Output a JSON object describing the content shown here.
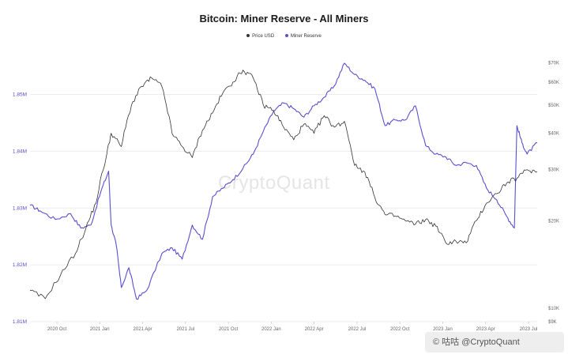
{
  "chart_data": {
    "type": "line",
    "title": "Bitcoin: Miner Reserve - All Miners",
    "legend": [
      {
        "name": "Price USD",
        "color": "#333333"
      },
      {
        "name": "Miner Reserve",
        "color": "#5a4fcf"
      }
    ],
    "x_ticks": [
      "2020 Oct",
      "2021 Jan",
      "2021 Apr",
      "2021 Jul",
      "2021 Oct",
      "2022 Jan",
      "2022 Apr",
      "2022 Jul",
      "2022 Oct",
      "2023 Jan",
      "2023 Apr",
      "2023 Jul"
    ],
    "y_left_ticks": [
      "1.85M",
      "1.84M",
      "1.83M",
      "1.82M",
      "1.81M"
    ],
    "y_left_values": [
      1850000,
      1840000,
      1830000,
      1820000,
      1810000
    ],
    "y_left_range": [
      1810000,
      1858000
    ],
    "y_right_ticks": [
      "$70K",
      "$60K",
      "$50K",
      "$40K",
      "$30K",
      "$20K",
      "$10K",
      "$9K"
    ],
    "y_right_values": [
      70000,
      60000,
      50000,
      40000,
      30000,
      20000,
      10000,
      9000
    ],
    "y_right_scale": "log",
    "series": [
      {
        "name": "Miner Reserve",
        "axis": "left",
        "color": "#5a4fcf",
        "x": [
          0,
          0.02,
          0.05,
          0.08,
          0.1,
          0.12,
          0.14,
          0.155,
          0.16,
          0.17,
          0.18,
          0.195,
          0.21,
          0.23,
          0.26,
          0.28,
          0.3,
          0.32,
          0.34,
          0.36,
          0.38,
          0.4,
          0.42,
          0.44,
          0.46,
          0.48,
          0.5,
          0.52,
          0.54,
          0.56,
          0.58,
          0.6,
          0.62,
          0.64,
          0.66,
          0.68,
          0.7,
          0.72,
          0.74,
          0.76,
          0.78,
          0.8,
          0.82,
          0.84,
          0.86,
          0.88,
          0.9,
          0.92,
          0.94,
          0.955,
          0.96,
          0.97,
          0.98,
          1.0
        ],
        "values": [
          1830500,
          1829500,
          1828000,
          1829000,
          1826500,
          1827000,
          1833000,
          1836500,
          1827000,
          1823500,
          1816000,
          1819500,
          1814000,
          1815500,
          1822000,
          1823000,
          1821000,
          1827000,
          1824500,
          1832000,
          1833500,
          1835000,
          1837000,
          1839500,
          1843500,
          1847000,
          1848500,
          1847500,
          1846000,
          1848000,
          1849500,
          1851500,
          1855500,
          1853500,
          1852500,
          1851000,
          1844500,
          1845500,
          1845500,
          1848000,
          1841000,
          1839500,
          1839000,
          1837500,
          1838000,
          1837500,
          1833500,
          1831500,
          1828500,
          1826500,
          1844500,
          1841500,
          1839500,
          1841500
        ]
      },
      {
        "name": "Price USD",
        "axis": "right",
        "color": "#333333",
        "x": [
          0,
          0.03,
          0.06,
          0.09,
          0.11,
          0.13,
          0.15,
          0.16,
          0.18,
          0.2,
          0.22,
          0.24,
          0.26,
          0.28,
          0.3,
          0.32,
          0.34,
          0.36,
          0.38,
          0.4,
          0.42,
          0.44,
          0.46,
          0.48,
          0.5,
          0.52,
          0.54,
          0.56,
          0.58,
          0.6,
          0.62,
          0.64,
          0.66,
          0.68,
          0.7,
          0.72,
          0.74,
          0.76,
          0.78,
          0.8,
          0.82,
          0.84,
          0.86,
          0.88,
          0.9,
          0.92,
          0.94,
          0.96,
          0.98,
          1.0
        ],
        "values": [
          11500,
          10800,
          13000,
          15500,
          18800,
          23000,
          33000,
          40000,
          36000,
          50000,
          58000,
          62000,
          58000,
          40000,
          36000,
          33000,
          41000,
          47000,
          55000,
          60000,
          66000,
          62000,
          50000,
          48000,
          42000,
          38000,
          43000,
          40000,
          46000,
          42000,
          44000,
          31000,
          29500,
          24000,
          21000,
          20800,
          20000,
          19500,
          20200,
          19200,
          16800,
          17000,
          16800,
          20000,
          23000,
          24800,
          27000,
          28000,
          30000,
          29500
        ]
      }
    ]
  },
  "watermark": "CryptoQuant",
  "badge": "© 咕咕 @CryptoQuant"
}
